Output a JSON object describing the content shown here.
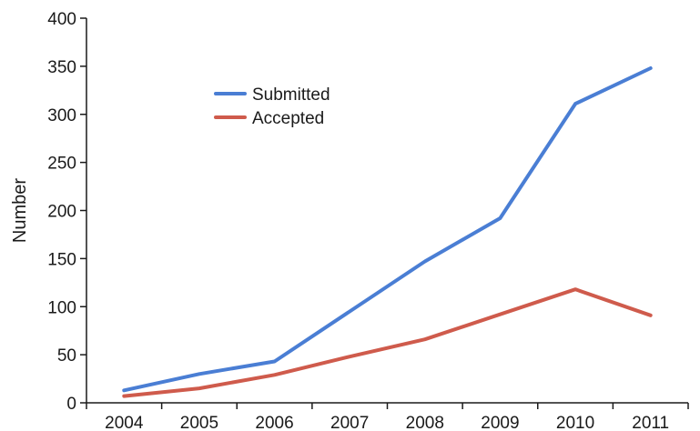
{
  "chart_data": {
    "type": "line",
    "title": "",
    "xlabel": "",
    "ylabel": "Number",
    "categories": [
      "2004",
      "2005",
      "2006",
      "2007",
      "2008",
      "2009",
      "2010",
      "2011"
    ],
    "ylim": [
      0,
      400
    ],
    "yticks": [
      "0",
      "50",
      "100",
      "150",
      "200",
      "250",
      "300",
      "350",
      "400"
    ],
    "grid": false,
    "legend_position": "upper-center",
    "series": [
      {
        "name": "Submitted",
        "color": "#4a7ed4",
        "values": [
          13,
          30,
          43,
          95,
          147,
          192,
          311,
          348
        ]
      },
      {
        "name": "Accepted",
        "color": "#cf5b4c",
        "values": [
          7,
          15,
          29,
          48,
          66,
          92,
          118,
          91
        ]
      }
    ]
  }
}
